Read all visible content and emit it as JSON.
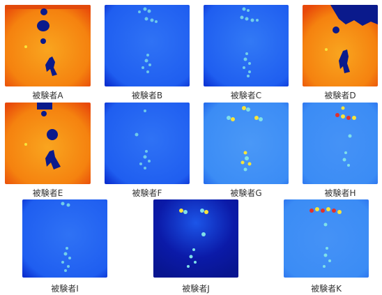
{
  "panels": [
    {
      "label": "被験者A",
      "theme": "orange"
    },
    {
      "label": "被験者B",
      "theme": "blue"
    },
    {
      "label": "被験者C",
      "theme": "blue"
    },
    {
      "label": "被験者D",
      "theme": "orange"
    },
    {
      "label": "被験者E",
      "theme": "orange"
    },
    {
      "label": "被験者F",
      "theme": "blue"
    },
    {
      "label": "被験者G",
      "theme": "blue-light"
    },
    {
      "label": "被験者H",
      "theme": "blue-light"
    },
    {
      "label": "被験者I",
      "theme": "blue"
    },
    {
      "label": "被験者J",
      "theme": "navy"
    },
    {
      "label": "被験者K",
      "theme": "blue-light"
    }
  ],
  "colors": {
    "orange_base": "#f5820f",
    "orange_edge": "#e8490a",
    "orange_hot": "#0a1a8c",
    "blue_base": "#1f5ef0",
    "blue_edge": "#0b2fd0",
    "blue_light": "#3b8cf5",
    "navy_base": "#0b1aa8",
    "navy_light": "#1c55e8",
    "spot_cyan": "#7fe0e8",
    "spot_yellow": "#f7e43a",
    "spot_red": "#e2312b"
  }
}
